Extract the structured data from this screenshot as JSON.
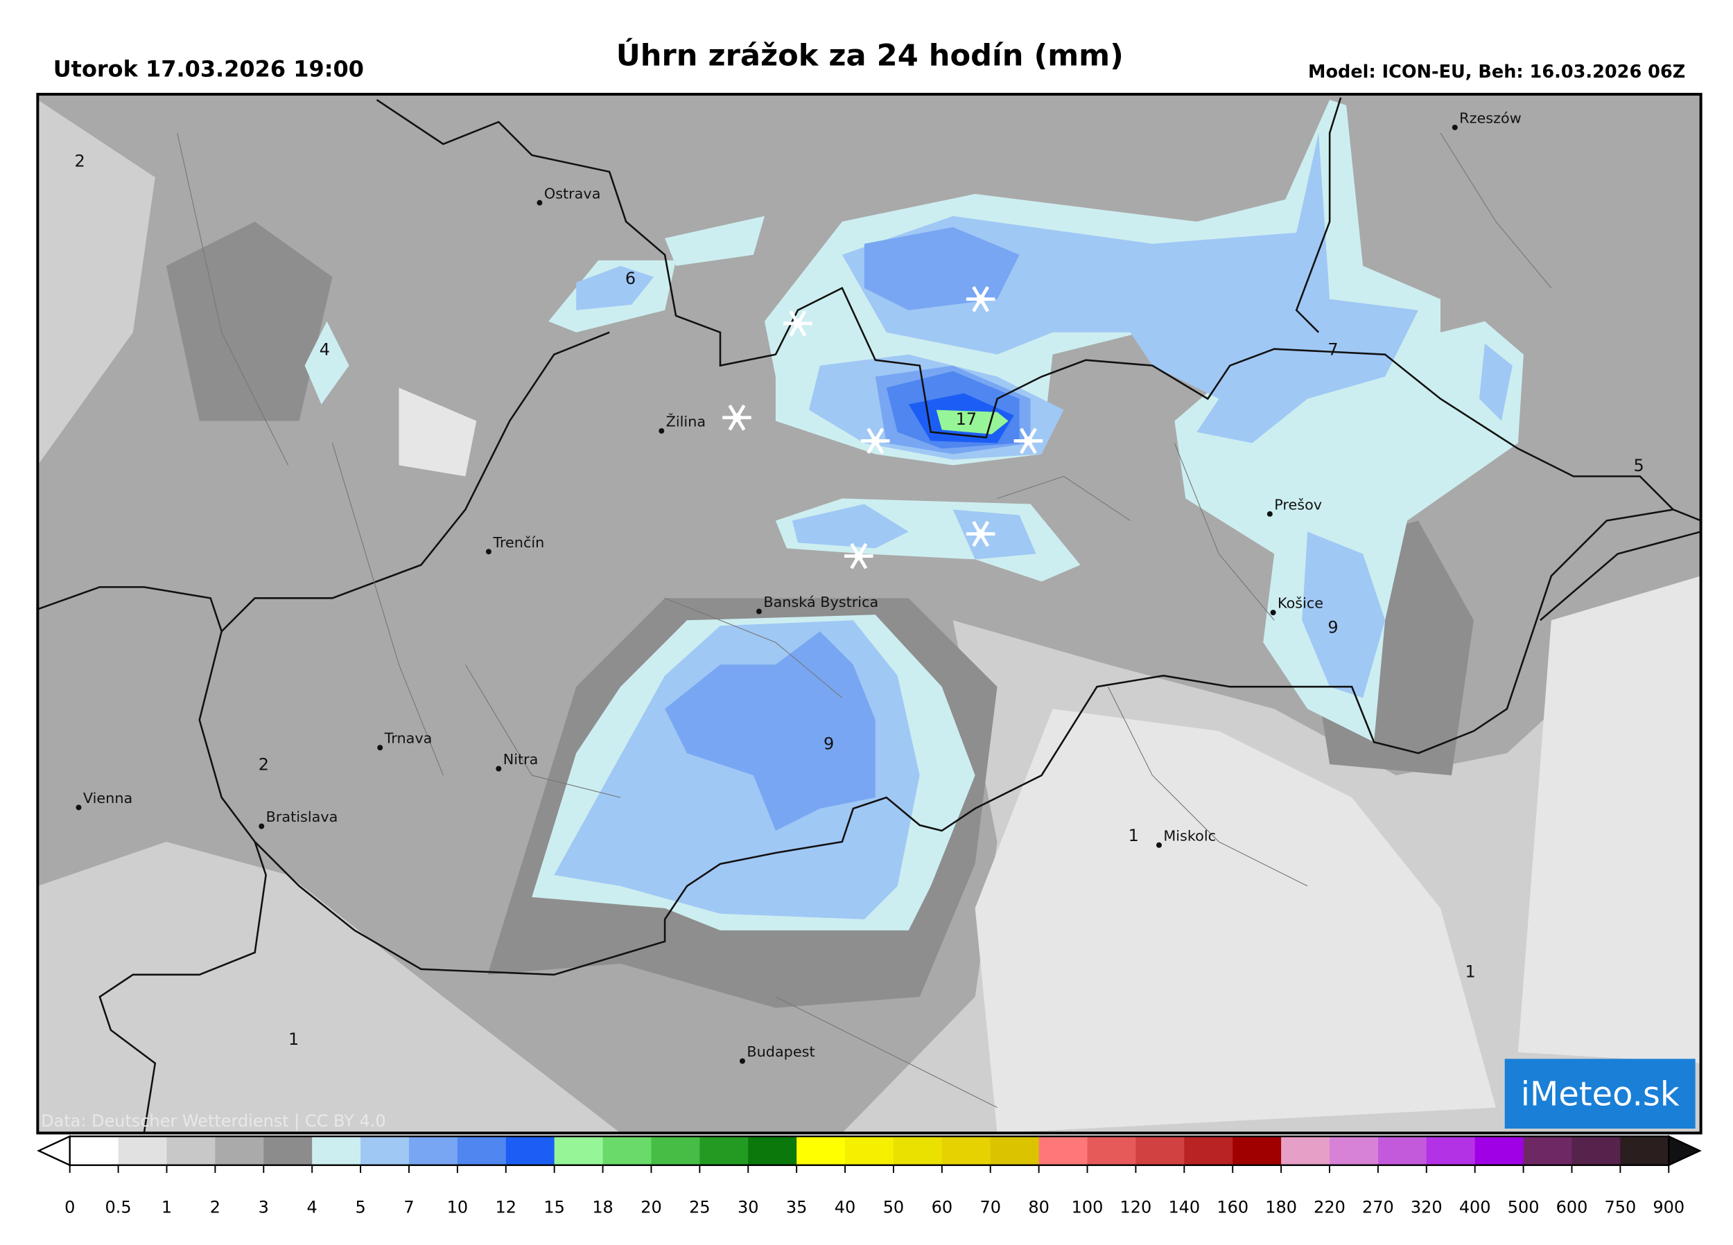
{
  "header": {
    "date": "Utorok 17.03.2026 19:00",
    "title": "Úhrn zrážok za 24 hodín (mm)",
    "model": "Model: ICON-EU, Beh: 16.03.2026 06Z"
  },
  "cities": [
    "Ostrava",
    "Žilina",
    "Trenčín",
    "Banská Bystrica",
    "Trnava",
    "Nitra",
    "Vienna",
    "Bratislava",
    "Budapest",
    "Miskolc",
    "Košice",
    "Prešov",
    "Rzeszów"
  ],
  "map_values": [
    2,
    6,
    4,
    17,
    7,
    5,
    9,
    9,
    2,
    1,
    1,
    1
  ],
  "credit": "Data: Deutscher Wetterdienst | CC BY 4.0",
  "logo": "iMeteo.sk",
  "colorbar": {
    "ticks": [
      0,
      0.5,
      1,
      2,
      3,
      4,
      5,
      7,
      10,
      12,
      15,
      18,
      20,
      25,
      30,
      35,
      40,
      50,
      60,
      70,
      80,
      100,
      120,
      140,
      160,
      180,
      220,
      270,
      320,
      400,
      500,
      600,
      750,
      900
    ],
    "colors": [
      "#ffffff",
      "#e1e1e1",
      "#c8c8c8",
      "#aaaaaa",
      "#8c8c8c",
      "#cdeef0",
      "#a0c8f5",
      "#78a6f2",
      "#4f86f0",
      "#1c5ef5",
      "#96f596",
      "#6ada6a",
      "#46be46",
      "#239b23",
      "#0a780a",
      "#ffff00",
      "#f5f000",
      "#ebe100",
      "#e6d200",
      "#dcc300",
      "#ff7878",
      "#e65a5a",
      "#d24141",
      "#b92323",
      "#a00000",
      "#e6a0c8",
      "#d782d7",
      "#c35adc",
      "#b432e6",
      "#a000e6",
      "#6e2864",
      "#55234b",
      "#2a1e1e"
    ],
    "under": "#ffffff",
    "over": "#111111"
  }
}
